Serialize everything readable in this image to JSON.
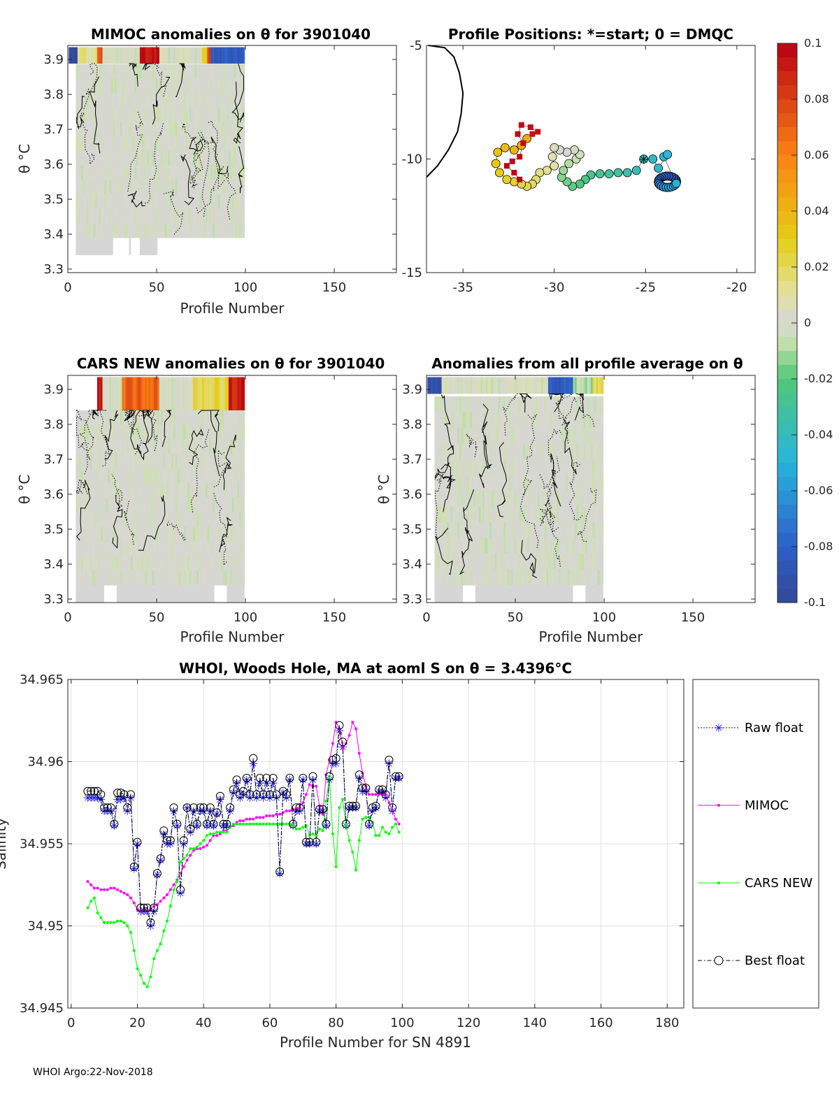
{
  "footer": "WHOI Argo:22-Nov-2018",
  "colorbar": {
    "ticks": [
      "0.1",
      "0.08",
      "0.06",
      "0.04",
      "0.02",
      "0",
      "-0.02",
      "-0.04",
      "-0.06",
      "-0.08",
      "-0.1"
    ]
  },
  "chart_data": [
    {
      "id": "mimoc",
      "type": "heatmap",
      "title": "MIMOC anomalies on θ  for 3901040",
      "xlabel": "Profile Number",
      "ylabel": "θ °C",
      "xlim": [
        0,
        185
      ],
      "ylim": [
        3.29,
        3.94
      ],
      "xticks": [
        "0",
        "50",
        "100",
        "150"
      ],
      "yticks": [
        "3.3",
        "3.4",
        "3.5",
        "3.6",
        "3.7",
        "3.8",
        "3.9"
      ]
    },
    {
      "id": "positions",
      "type": "scatter",
      "title": "Profile Positions: *=start; 0 = DMQC",
      "xlim": [
        -37,
        -19
      ],
      "ylim": [
        -15,
        -5
      ],
      "xticks": [
        "-35",
        "-30",
        "-25",
        "-20"
      ],
      "yticks": [
        "-5",
        "-10",
        "-15"
      ],
      "start": [
        -25.1,
        -10.0
      ],
      "track": [
        [
          -25.1,
          -10.0
        ],
        [
          -25.5,
          -10.5
        ],
        [
          -26.0,
          -10.6
        ],
        [
          -26.5,
          -10.6
        ],
        [
          -27.0,
          -10.65
        ],
        [
          -27.5,
          -10.65
        ],
        [
          -28.0,
          -10.7
        ],
        [
          -28.3,
          -10.9
        ],
        [
          -28.6,
          -11.1
        ],
        [
          -29.0,
          -11.2
        ],
        [
          -29.3,
          -11.0
        ],
        [
          -29.6,
          -10.8
        ],
        [
          -29.5,
          -10.5
        ],
        [
          -29.2,
          -10.2
        ],
        [
          -28.8,
          -10.0
        ],
        [
          -28.6,
          -9.8
        ],
        [
          -28.9,
          -9.6
        ],
        [
          -29.3,
          -9.7
        ],
        [
          -29.7,
          -9.6
        ],
        [
          -30.0,
          -9.5
        ],
        [
          -30.1,
          -9.9
        ],
        [
          -30.0,
          -10.3
        ],
        [
          -30.4,
          -10.5
        ],
        [
          -30.8,
          -10.6
        ],
        [
          -31.0,
          -10.9
        ],
        [
          -31.2,
          -11.1
        ],
        [
          -31.5,
          -11.2
        ],
        [
          -31.8,
          -11.1
        ],
        [
          -32.2,
          -11.0
        ],
        [
          -32.6,
          -10.9
        ],
        [
          -33.0,
          -10.6
        ],
        [
          -33.2,
          -10.2
        ],
        [
          -33.1,
          -9.7
        ],
        [
          -32.7,
          -9.5
        ],
        [
          -32.2,
          -9.6
        ],
        [
          -31.8,
          -9.4
        ],
        [
          -31.5,
          -9.1
        ],
        [
          -31.2,
          -8.9
        ],
        [
          -30.9,
          -8.8
        ],
        [
          -31.3,
          -8.6
        ],
        [
          -31.8,
          -8.5
        ],
        [
          -32.0,
          -8.9
        ],
        [
          -31.7,
          -9.3
        ],
        [
          -31.9,
          -9.9
        ],
        [
          -32.3,
          -10.1
        ],
        [
          -32.6,
          -10.3
        ],
        [
          -32.2,
          -10.6
        ],
        [
          -31.9,
          -10.9
        ]
      ],
      "loop_center": [
        -23.8,
        -11.0
      ]
    },
    {
      "id": "cars",
      "type": "heatmap",
      "title": "CARS NEW anomalies on θ for 3901040",
      "xlabel": "Profile Number",
      "ylabel": "θ °C",
      "xlim": [
        0,
        185
      ],
      "ylim": [
        3.29,
        3.94
      ],
      "xticks": [
        "0",
        "50",
        "100",
        "150"
      ],
      "yticks": [
        "3.3",
        "3.4",
        "3.5",
        "3.6",
        "3.7",
        "3.8",
        "3.9"
      ]
    },
    {
      "id": "avg",
      "type": "heatmap",
      "title": "Anomalies from all profile average on θ",
      "xlabel": "Profile Number",
      "ylabel": "θ °C",
      "xlim": [
        0,
        185
      ],
      "ylim": [
        3.29,
        3.94
      ],
      "xticks": [
        "0",
        "50",
        "100",
        "150"
      ],
      "yticks": [
        "3.3",
        "3.4",
        "3.5",
        "3.6",
        "3.7",
        "3.8",
        "3.9"
      ]
    },
    {
      "id": "salinity",
      "type": "line",
      "title": "WHOI, Woods Hole, MA at aoml S on θ = 3.4396°C",
      "xlabel": "Profile Number for SN 4891",
      "ylabel": "Salinity",
      "xlim": [
        -1,
        185
      ],
      "ylim": [
        34.945,
        34.965
      ],
      "xticks": [
        "0",
        "20",
        "40",
        "60",
        "80",
        "100",
        "120",
        "140",
        "160",
        "180"
      ],
      "yticks": [
        "34.945",
        "34.95",
        "34.955",
        "34.96",
        "34.965"
      ],
      "grid": true,
      "legend": [
        "Raw float",
        "MIMOC",
        "CARS NEW",
        "Best float"
      ],
      "x": [
        5,
        6,
        7,
        8,
        9,
        10,
        11,
        12,
        13,
        14,
        15,
        16,
        17,
        18,
        19,
        20,
        21,
        22,
        23,
        24,
        25,
        26,
        27,
        28,
        29,
        30,
        31,
        32,
        33,
        34,
        35,
        36,
        37,
        38,
        39,
        40,
        41,
        42,
        43,
        44,
        45,
        46,
        47,
        48,
        49,
        50,
        51,
        52,
        53,
        54,
        55,
        56,
        57,
        58,
        59,
        60,
        61,
        62,
        63,
        64,
        65,
        66,
        67,
        68,
        69,
        70,
        71,
        72,
        73,
        74,
        75,
        76,
        77,
        78,
        79,
        80,
        81,
        82,
        83,
        84,
        85,
        86,
        87,
        88,
        89,
        90,
        91,
        92,
        93,
        94,
        95,
        96,
        97,
        98,
        99
      ],
      "series": [
        {
          "name": "Raw float",
          "values": [
            34.9578,
            34.9578,
            34.9578,
            34.9578,
            34.9577,
            34.957,
            34.957,
            34.957,
            34.9561,
            34.9577,
            34.9577,
            34.9578,
            34.957,
            34.9578,
            34.9535,
            34.955,
            34.9509,
            34.9509,
            34.9509,
            34.95,
            34.9509,
            34.9531,
            34.954,
            34.9556,
            34.955,
            34.955,
            34.957,
            34.9561,
            34.952,
            34.955,
            34.9572,
            34.9557,
            34.957,
            34.9561,
            34.957,
            34.957,
            34.9561,
            34.957,
            34.9561,
            34.9568,
            34.9577,
            34.9561,
            34.9561,
            34.957,
            34.9581,
            34.9587,
            34.9578,
            34.958,
            34.9589,
            34.9578,
            34.9599,
            34.9578,
            34.9587,
            34.9578,
            34.9587,
            34.9578,
            34.9587,
            34.9578,
            34.9532,
            34.9581,
            34.9578,
            34.9589,
            34.9561,
            34.957,
            34.957,
            34.9589,
            34.955,
            34.955,
            34.9589,
            34.955,
            34.957,
            34.957,
            34.9561,
            34.9589,
            34.9599,
            34.9599,
            34.9619,
            34.9609,
            34.9561,
            34.9572,
            34.9572,
            34.9572,
            34.959,
            34.9582,
            34.9582,
            34.9561,
            34.957,
            34.9572,
            34.9582,
            34.9582,
            34.9578,
            34.9599,
            34.957,
            34.959,
            34.959
          ]
        },
        {
          "name": "MIMOC",
          "values": [
            34.9527,
            34.9525,
            34.9523,
            34.9523,
            34.9522,
            34.9522,
            34.9522,
            34.9523,
            34.9523,
            34.9522,
            34.9521,
            34.952,
            34.9519,
            34.9517,
            34.9514,
            34.951,
            34.9509,
            34.9509,
            34.9509,
            34.951,
            34.9512,
            34.9513,
            34.9515,
            34.9517,
            34.9519,
            34.9522,
            34.9525,
            34.9528,
            34.9532,
            34.9536,
            34.954,
            34.9543,
            34.9546,
            34.9547,
            34.9547,
            34.9548,
            34.9549,
            34.9552,
            34.9555,
            34.9555,
            34.9556,
            34.9558,
            34.9558,
            34.956,
            34.9561,
            34.9563,
            34.9564,
            34.9564,
            34.9565,
            34.9565,
            34.9565,
            34.9566,
            34.9566,
            34.9566,
            34.9567,
            34.9567,
            34.9567,
            34.9568,
            34.9568,
            34.9569,
            34.957,
            34.957,
            34.9571,
            34.9571,
            34.9572,
            34.9575,
            34.958,
            34.9586,
            34.9585,
            34.9585,
            34.9573,
            34.9568,
            34.9592,
            34.9601,
            34.9611,
            34.9624,
            34.962,
            34.9608,
            34.9611,
            34.9616,
            34.9624,
            34.962,
            34.9605,
            34.9593,
            34.9585,
            34.958,
            34.958,
            34.958,
            34.958,
            34.958,
            34.958,
            34.9575,
            34.957,
            34.9565,
            34.9562
          ]
        },
        {
          "name": "CARS NEW",
          "values": [
            34.9511,
            34.9515,
            34.9517,
            34.9508,
            34.9505,
            34.9502,
            34.9502,
            34.9502,
            34.9502,
            34.9503,
            34.9503,
            34.9502,
            34.95,
            34.9496,
            34.9485,
            34.9474,
            34.947,
            34.9465,
            34.9463,
            34.9469,
            34.948,
            34.9485,
            34.9489,
            34.9497,
            34.9503,
            34.9512,
            34.9522,
            34.9527,
            34.9539,
            34.9541,
            34.9543,
            34.9547,
            34.9547,
            34.9548,
            34.955,
            34.9552,
            34.9555,
            34.9556,
            34.9556,
            34.9557,
            34.9557,
            34.9557,
            34.9557,
            34.956,
            34.9562,
            34.9562,
            34.9562,
            34.9562,
            34.9562,
            34.9562,
            34.9562,
            34.9562,
            34.9562,
            34.9562,
            34.9562,
            34.9562,
            34.9562,
            34.9562,
            34.9562,
            34.9562,
            34.9562,
            34.9562,
            34.9561,
            34.9559,
            34.9559,
            34.956,
            34.9561,
            34.9555,
            34.9556,
            34.9555,
            34.9559,
            34.9558,
            34.9576,
            34.9591,
            34.9556,
            34.9536,
            34.9572,
            34.9577,
            34.9561,
            34.9552,
            34.9545,
            34.9534,
            34.9552,
            34.9565,
            34.9566,
            34.9566,
            34.9563,
            34.9555,
            34.9555,
            34.956,
            34.9557,
            34.9556,
            34.956,
            34.9562,
            34.9557
          ]
        },
        {
          "name": "Best float",
          "values": [
            34.9582,
            34.9582,
            34.9582,
            34.9582,
            34.958,
            34.9572,
            34.9572,
            34.9572,
            34.9562,
            34.9581,
            34.9581,
            34.958,
            34.9572,
            34.958,
            34.9536,
            34.9551,
            34.9511,
            34.9511,
            34.9511,
            34.9502,
            34.9511,
            34.9532,
            34.9541,
            34.9558,
            34.9552,
            34.9552,
            34.9572,
            34.9562,
            34.9522,
            34.9552,
            34.9572,
            34.9559,
            34.9572,
            34.9562,
            34.9572,
            34.9572,
            34.9562,
            34.9572,
            34.9562,
            34.9569,
            34.9579,
            34.9562,
            34.9562,
            34.9572,
            34.9583,
            34.9589,
            34.958,
            34.9582,
            34.959,
            34.958,
            34.9602,
            34.958,
            34.959,
            34.958,
            34.959,
            34.958,
            34.959,
            34.958,
            34.9533,
            34.9582,
            34.958,
            34.959,
            34.9562,
            34.9572,
            34.9572,
            34.959,
            34.9551,
            34.9551,
            34.9591,
            34.9551,
            34.9571,
            34.9571,
            34.9562,
            34.9591,
            34.9601,
            34.9602,
            34.9622,
            34.9612,
            34.9562,
            34.9573,
            34.9573,
            34.9573,
            34.9592,
            34.9584,
            34.9584,
            34.9562,
            34.9572,
            34.9573,
            34.9583,
            34.9583,
            34.958,
            34.9601,
            34.9572,
            34.9591,
            34.9591
          ]
        }
      ]
    }
  ]
}
